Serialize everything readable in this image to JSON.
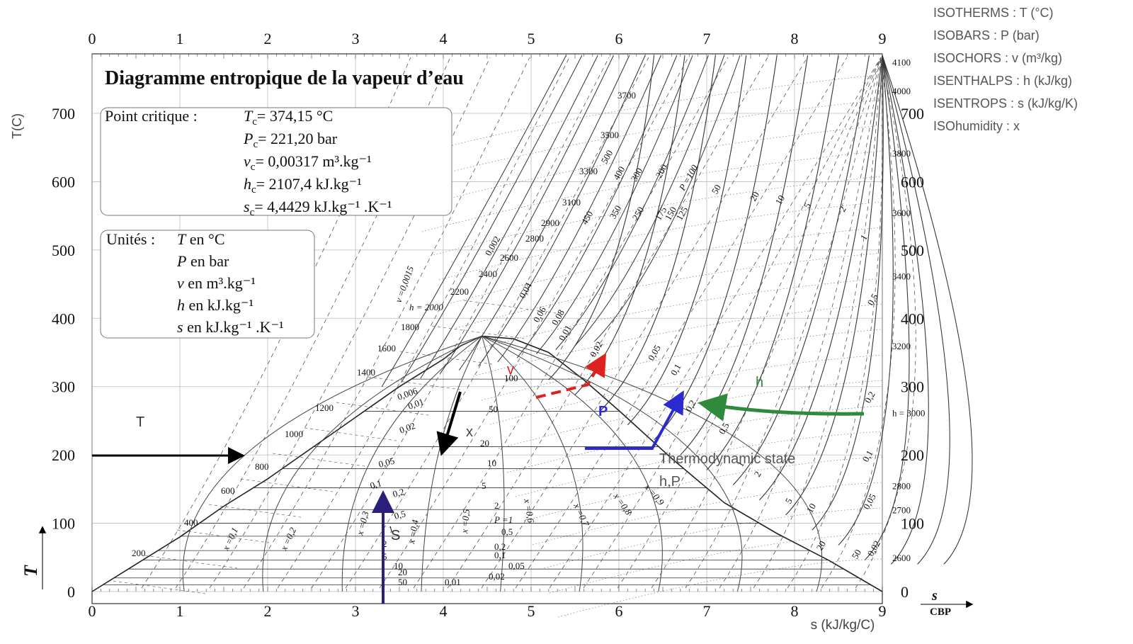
{
  "title": "Diagramme entropique de la vapeur d’eau",
  "critical": {
    "heading": "Point critique :",
    "lines": [
      {
        "sym": "T",
        "sub": "c",
        "text": "= 374,15 °C",
        "sup": ""
      },
      {
        "sym": "P",
        "sub": "c",
        "text": "= 221,20  bar",
        "sup": ""
      },
      {
        "sym": "v",
        "sub": "c",
        "text": "= 0,00317  m³.kg⁻¹",
        "sup": ""
      },
      {
        "sym": "h",
        "sub": "c",
        "text": "= 2107,4  kJ.kg⁻¹",
        "sup": ""
      },
      {
        "sym": "s",
        "sub": "c",
        "text": "= 4,4429  kJ.kg⁻¹ .K⁻¹",
        "sup": ""
      }
    ]
  },
  "units": {
    "heading": "Unités :",
    "lines": [
      {
        "sym": "T",
        "text": " en °C"
      },
      {
        "sym": "P",
        "text": " en bar"
      },
      {
        "sym": "v",
        "text": " en m³.kg⁻¹"
      },
      {
        "sym": "h",
        "text": " en kJ.kg⁻¹"
      },
      {
        "sym": "s",
        "text": " en kJ.kg⁻¹ .K⁻¹"
      }
    ]
  },
  "legend": [
    "ISOTHERMS : T (°C)",
    "ISOBARS : P (bar)",
    "ISOCHORS : v (m³/kg)",
    "ISENTHALPS : h (kJ/kg)",
    "ISENTROPS : s (kJ/kg/K)",
    "ISOhumidity : x"
  ],
  "axes": {
    "y_title_left": "T(C)",
    "y_title_italic": "T",
    "x_title_bottom": "s (kJ/kg/C)",
    "x_title_italic": "s",
    "corner_label": "CBP",
    "x_ticks": [
      0,
      1,
      2,
      3,
      4,
      5,
      6,
      7,
      8,
      9
    ],
    "y_ticks": [
      0,
      100,
      200,
      300,
      400,
      500,
      600,
      700
    ],
    "x_range": [
      0,
      9
    ],
    "y_range": [
      0,
      700
    ]
  },
  "right_h_labels": [
    {
      "value": "4100",
      "t": 775
    },
    {
      "value": "4000",
      "t": 733
    },
    {
      "value": "3800",
      "t": 642
    },
    {
      "value": "3600",
      "t": 555
    },
    {
      "value": "3400",
      "t": 462
    },
    {
      "value": "3200",
      "t": 360
    },
    {
      "value": "h = 3000",
      "t": 262
    },
    {
      "value": "2800",
      "t": 155
    },
    {
      "value": "2700",
      "t": 120
    },
    {
      "value": "2600",
      "t": 50
    }
  ],
  "chart_data": {
    "type": "thermodynamic-diagram",
    "title": "Diagramme entropique de la vapeur d’eau",
    "xlabel": "s (kJ/kg/C)",
    "ylabel": "T(C)",
    "xlim": [
      0,
      9
    ],
    "ylim": [
      0,
      700
    ],
    "saturation_dome": [
      [
        0,
        0
      ],
      [
        0.5,
        40
      ],
      [
        1,
        80
      ],
      [
        1.5,
        125
      ],
      [
        2,
        165
      ],
      [
        2.5,
        210
      ],
      [
        3,
        255
      ],
      [
        3.5,
        300
      ],
      [
        4,
        340
      ],
      [
        4.2,
        360
      ],
      [
        4.44,
        374
      ],
      [
        4.8,
        370
      ],
      [
        5.2,
        350
      ],
      [
        5.6,
        310
      ],
      [
        6.0,
        265
      ],
      [
        6.6,
        195
      ],
      [
        7.2,
        130
      ],
      [
        7.8,
        85
      ],
      [
        8.4,
        45
      ],
      [
        9.0,
        0
      ]
    ],
    "isobars": [
      {
        "label": "P =100",
        "s": 6.2,
        "T": 570
      },
      {
        "label": "50",
        "s": 6.3,
        "T": 560
      },
      {
        "label": "20",
        "s": 6.45,
        "T": 545
      },
      {
        "label": "10",
        "s": 6.9,
        "T": 545
      },
      {
        "label": "5",
        "s": 7.15,
        "T": 540
      },
      {
        "label": "2",
        "s": 7.55,
        "T": 530
      },
      {
        "label": "1",
        "s": 8.1,
        "T": 510
      },
      {
        "label": "0,5",
        "s": 8.4,
        "T": 420
      },
      {
        "label": "0,2",
        "s": 8.85,
        "T": 285
      },
      {
        "label": "0,1",
        "s": 8.85,
        "T": 200
      },
      {
        "label": "0,05",
        "s": 8.85,
        "T": 135
      },
      {
        "label": "0,02",
        "s": 8.85,
        "T": 65
      }
    ],
    "high_pressure_labels": [
      "500",
      "400",
      "300",
      "200",
      "175",
      "150",
      "125",
      "450",
      "350",
      "250"
    ],
    "isochore_labels": [
      "0,0015",
      "0,002",
      "0,04",
      "0,06",
      "0,08",
      "0,01",
      "0,02",
      "0,05",
      "0,1",
      "0,2",
      "0,5",
      "1",
      "2",
      "5",
      "10",
      "20",
      "50",
      "0,006",
      "0,01",
      "0,02",
      "0,05",
      "0,1",
      "0,2",
      "0,5",
      "1",
      "2",
      "5",
      "10",
      "20",
      "50"
    ],
    "isenthalp_labels": [
      "h = 2000",
      "2200",
      "2400",
      "2600",
      "2800",
      "2900",
      "3100",
      "3300",
      "3500",
      "3700",
      "1800",
      "1600",
      "1400",
      "1200",
      "1000",
      "800",
      "600",
      "400",
      "200"
    ],
    "wet_pressure_labels": [
      "100",
      "50",
      "20",
      "10",
      "5",
      "2",
      "P =1",
      "0,5",
      "0,2",
      "0,1",
      "0,05",
      "0,02",
      "0,01",
      "10",
      "20",
      "50"
    ],
    "quality_labels": [
      "x =0,1",
      "x =0,2",
      "x =0,3",
      "x =0,4",
      "x =0,5",
      "x =0,6",
      "x =0,7",
      "x =0,8",
      "x =0,9"
    ]
  },
  "annotations": {
    "T": "T",
    "S": "S",
    "x": "x",
    "v": "v",
    "P": "P",
    "h": "h",
    "thermo1": "Thermodynamic state",
    "thermo2": "h,P"
  }
}
